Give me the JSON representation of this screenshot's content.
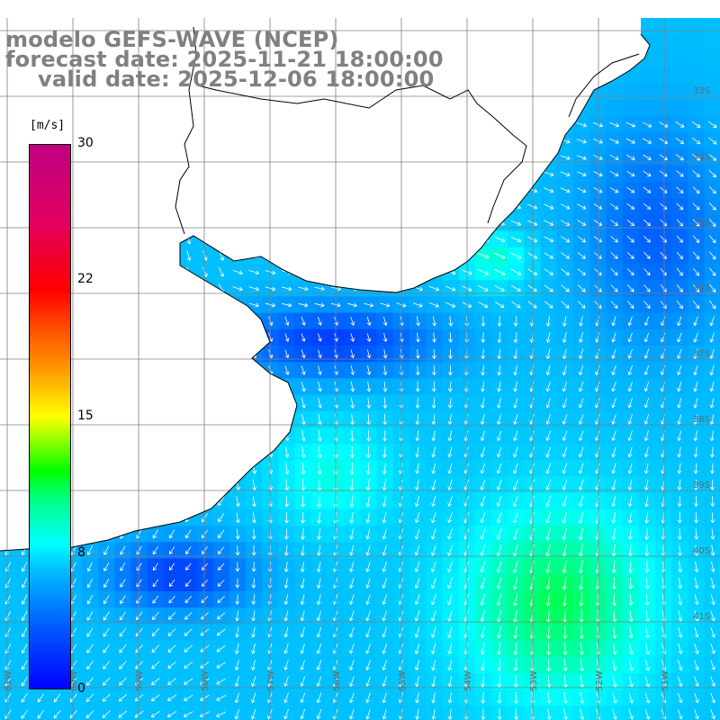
{
  "title": {
    "line1": "modelo GEFS-WAVE (NCEP)",
    "line2": "forecast date: 2025-11-21 18:00:00",
    "line3": "valid date: 2025-12-06 18:00:00"
  },
  "colorbar": {
    "unit_label": "[m/s]",
    "ticks": [
      "0",
      "8",
      "15",
      "22",
      "30"
    ],
    "tick_values": [
      0,
      8,
      15,
      22,
      30
    ],
    "min": 0,
    "max": 30,
    "colors": [
      "#0000ff",
      "#00c0ff",
      "#00ffff",
      "#00ff00",
      "#ffff00",
      "#ff8000",
      "#ff0000",
      "#c00080"
    ]
  },
  "map": {
    "variable": "wind speed and direction",
    "land_color": "#ffffff",
    "coastline_color": "#000000",
    "grid_color": "#808080",
    "lat_labels": [
      "33S",
      "34S",
      "35S",
      "36S",
      "37S",
      "38S",
      "39S",
      "40S",
      "41S"
    ],
    "lon_labels": [
      "61W",
      "60W",
      "59W",
      "58W",
      "57W",
      "56W",
      "55W",
      "54W",
      "53W",
      "52W",
      "51W"
    ]
  }
}
